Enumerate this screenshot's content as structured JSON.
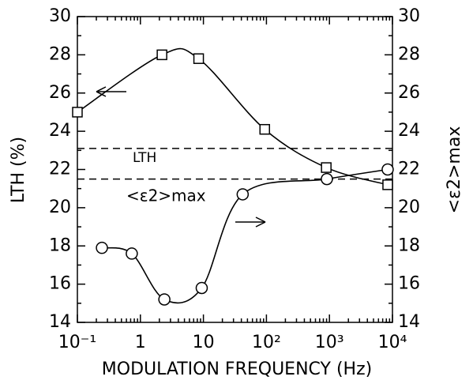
{
  "chart_data": {
    "type": "line",
    "xlabel": "MODULATION FREQUENCY (Hz)",
    "ylabel": "LTH (%)",
    "y2label": "<ε2>max",
    "xscale": "log",
    "xlim": [
      0.1,
      10000
    ],
    "xticks": [
      {
        "value": 0.1,
        "label": "10⁻¹"
      },
      1,
      10,
      {
        "value": 100,
        "label": "10²"
      },
      {
        "value": 1000,
        "label": "10³"
      },
      {
        "value": 10000,
        "label": "10⁴"
      }
    ],
    "ylim": [
      14,
      30
    ],
    "yticks": [
      14,
      16,
      18,
      20,
      22,
      24,
      26,
      28,
      30
    ],
    "y2lim": [
      14,
      30
    ],
    "y2ticks": [
      14,
      16,
      18,
      20,
      22,
      24,
      26,
      28,
      30
    ],
    "hlines": [
      23.1,
      21.5
    ],
    "series": [
      {
        "name": "LTH",
        "marker": "square",
        "color": "#000000",
        "x": [
          0.1,
          2.2,
          8.4,
          94,
          890,
          8400
        ],
        "values": [
          25,
          28,
          27.8,
          24.1,
          22.1,
          21.2
        ]
      },
      {
        "name": "<ε2>max",
        "marker": "circle",
        "color": "#000000",
        "axis": "y2",
        "x": [
          0.245,
          0.73,
          2.4,
          9.4,
          42,
          910,
          8400
        ],
        "values": [
          17.9,
          17.6,
          15.2,
          15.8,
          20.7,
          21.5,
          22.0
        ]
      }
    ]
  }
}
